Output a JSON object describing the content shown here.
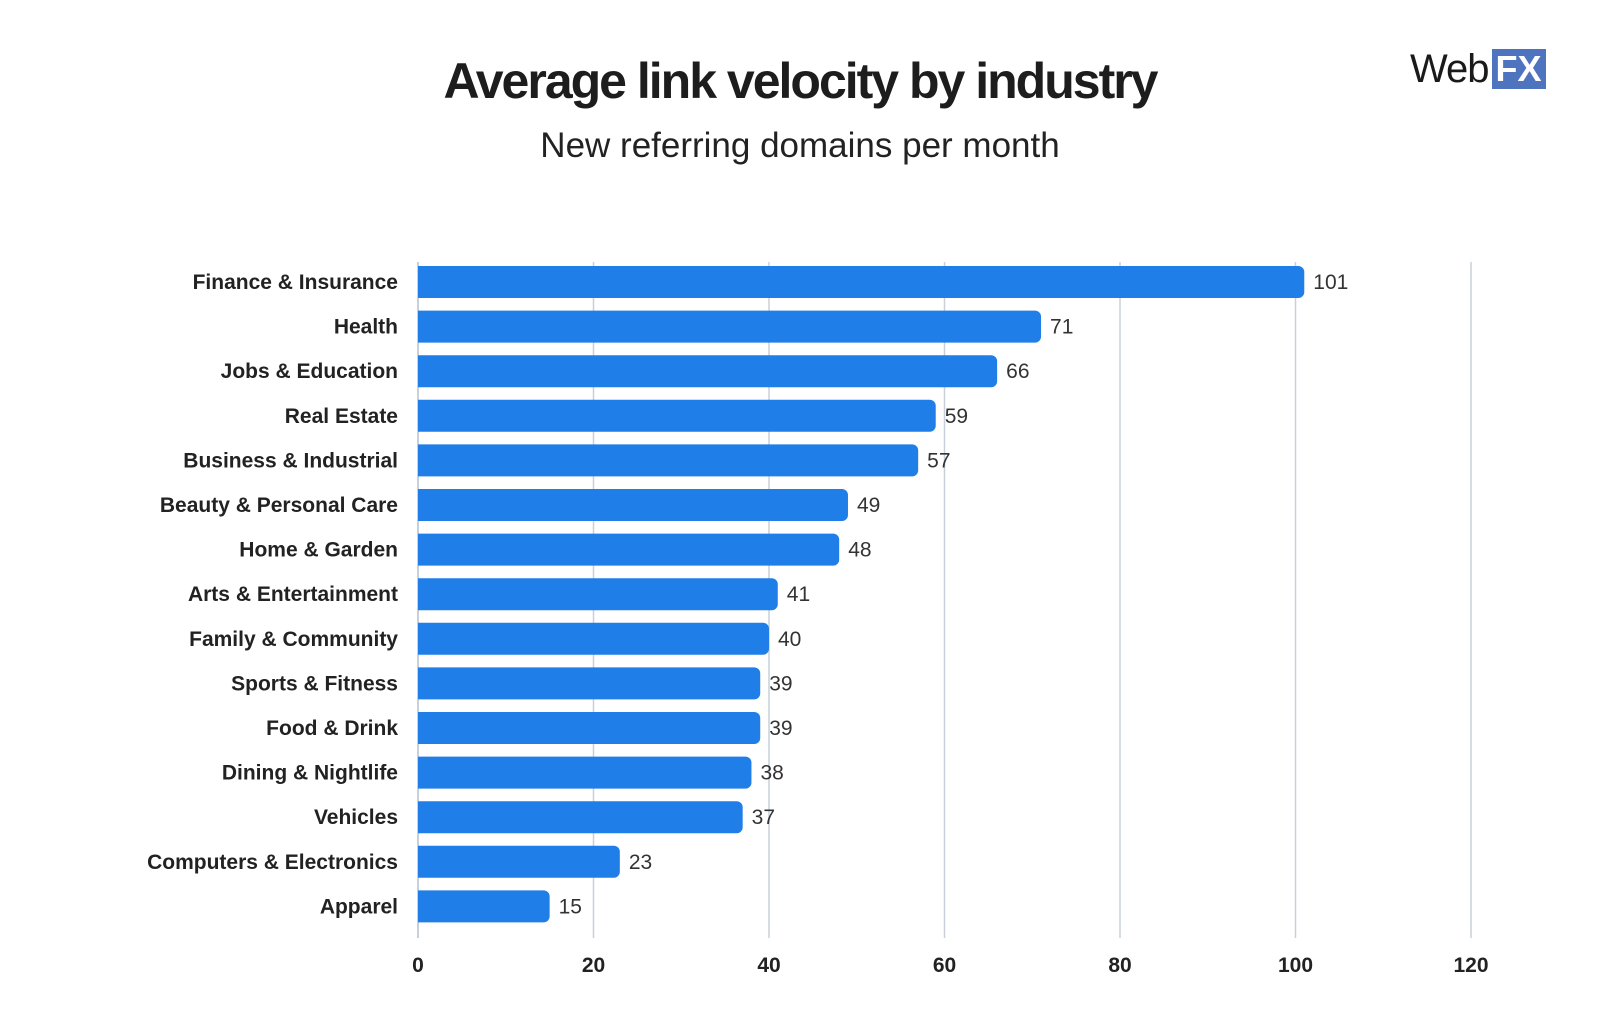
{
  "chart_data": {
    "type": "bar",
    "orientation": "horizontal",
    "title": "Average link velocity by industry",
    "subtitle": "New referring domains per month",
    "categories": [
      "Finance & Insurance",
      "Health",
      "Jobs & Education",
      "Real Estate",
      "Business & Industrial",
      "Beauty & Personal Care",
      "Home & Garden",
      "Arts & Entertainment",
      "Family & Community",
      "Sports & Fitness",
      "Food & Drink",
      "Dining & Nightlife",
      "Vehicles",
      "Computers & Electronics",
      "Apparel"
    ],
    "values": [
      101,
      71,
      66,
      59,
      57,
      49,
      48,
      41,
      40,
      39,
      39,
      38,
      37,
      23,
      15
    ],
    "xlim": [
      0,
      120
    ],
    "xticks": [
      0,
      20,
      40,
      60,
      80,
      100,
      120
    ],
    "grid": true,
    "bar_color": "#1f7ee8",
    "grid_color": "#c9d0d9"
  },
  "logo": {
    "text_web": "Web",
    "text_fx": "FX",
    "fx_color": "#4f74bf"
  }
}
